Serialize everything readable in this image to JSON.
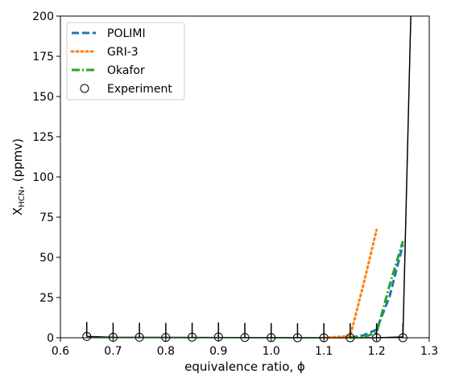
{
  "chart_data": {
    "type": "line",
    "title": "",
    "xlabel": "equivalence ratio, ϕ",
    "ylabel": {
      "base": "X",
      "sub": "HCN",
      "suffix": ", (ppmv)"
    },
    "xlim": [
      0.6,
      1.3
    ],
    "ylim": [
      0,
      200
    ],
    "xticks": [
      "0.6",
      "0.7",
      "0.8",
      "0.9",
      "1.0",
      "1.1",
      "1.2",
      "1.3"
    ],
    "yticks": [
      "0",
      "25",
      "50",
      "75",
      "100",
      "125",
      "150",
      "175",
      "200"
    ],
    "grid": false,
    "legend_position": "top-left",
    "series": [
      {
        "name": "POLIMI",
        "style": "dashed",
        "color": "#1f77b4",
        "x": [
          1.15,
          1.175,
          1.2,
          1.225,
          1.25
        ],
        "y": [
          0,
          1.5,
          5,
          26,
          58
        ]
      },
      {
        "name": "GRI-3",
        "style": "dotted",
        "color": "#ff7f0e",
        "x": [
          1.1,
          1.15,
          1.175,
          1.2
        ],
        "y": [
          0,
          1,
          33,
          67
        ]
      },
      {
        "name": "Okafor",
        "style": "dashdot",
        "color": "#2ca02c",
        "x": [
          1.15,
          1.175,
          1.2,
          1.225,
          1.25
        ],
        "y": [
          0,
          0.5,
          3,
          33,
          60
        ]
      },
      {
        "name": "Experiment",
        "style": "markers",
        "color": "#000000",
        "x": [
          0.65,
          0.7,
          0.75,
          0.8,
          0.85,
          0.9,
          0.95,
          1.0,
          1.05,
          1.1,
          1.15,
          1.2,
          1.25
        ],
        "y": [
          0.8,
          0.3,
          0.3,
          0.2,
          0.4,
          0.5,
          0.2,
          0.1,
          0,
          0,
          0,
          0,
          0
        ],
        "err_upper": [
          9,
          9,
          9,
          9,
          9,
          9,
          9,
          9,
          9,
          9,
          9,
          9,
          9
        ]
      }
    ],
    "unlabeled_lines": [
      {
        "color": "#000000",
        "x": [
          0.65,
          0.7,
          1.1,
          1.2,
          1.25,
          1.265
        ],
        "y": [
          0.8,
          0.3,
          0,
          0,
          0.5,
          200
        ]
      },
      {
        "color": "#2ca02c",
        "x": [
          0.65,
          0.7,
          1.1
        ],
        "y": [
          0.2,
          0.1,
          0
        ]
      }
    ]
  }
}
